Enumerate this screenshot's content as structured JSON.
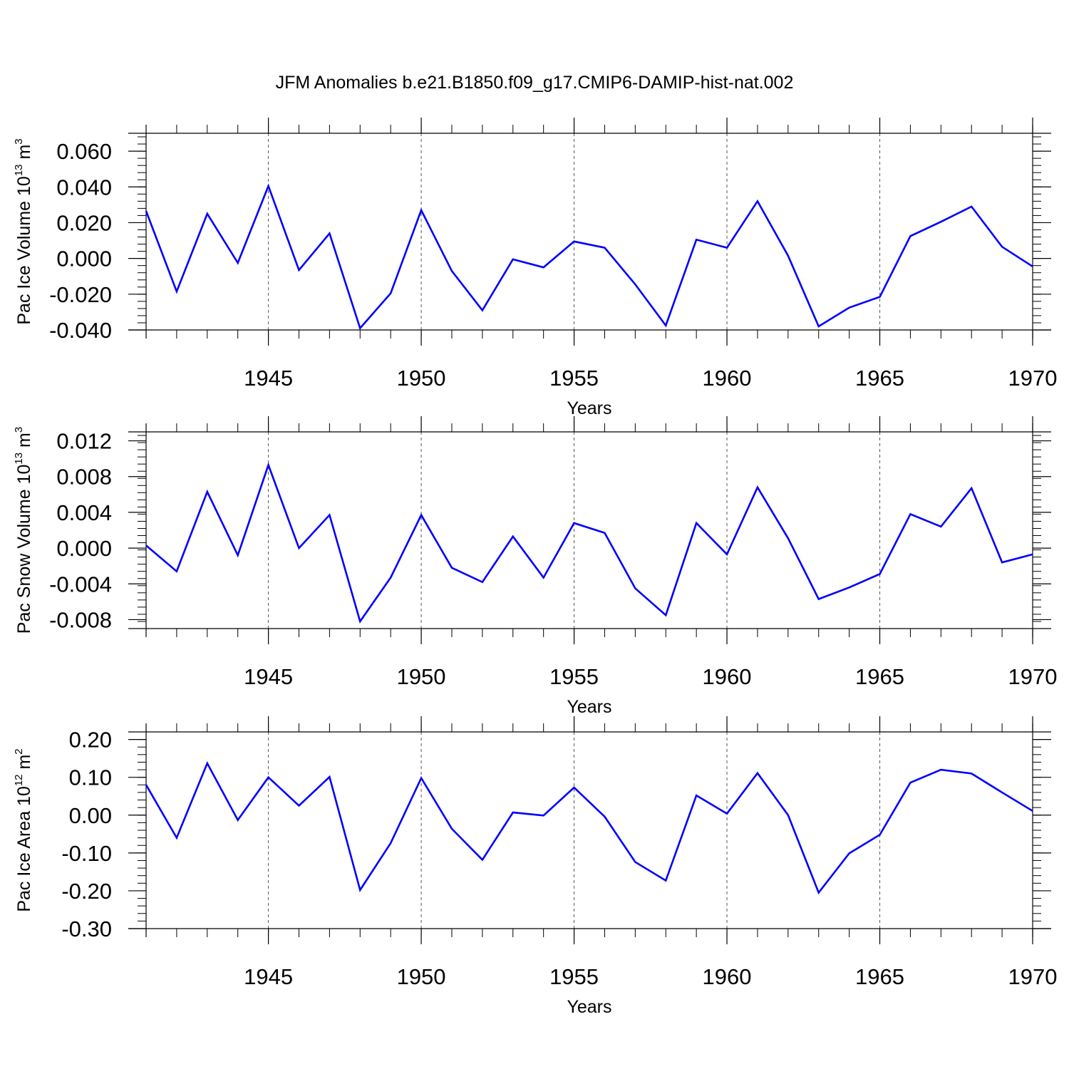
{
  "title": "JFM Anomalies b.e21.B1850.f09_g17.CMIP6-DAMIP-hist-nat.002",
  "line_color": "#0000ff",
  "chart_data": [
    {
      "type": "line",
      "ylabel_main": "Pac Ice Volume 10",
      "ylabel_sup": "13",
      "ylabel_unit": " m",
      "ylabel_unit_sup": "3",
      "xlabel": "Years",
      "xlim": [
        1941,
        1970
      ],
      "ylim": [
        -0.04,
        0.07
      ],
      "yticks": [
        -0.04,
        -0.02,
        0.0,
        0.02,
        0.04,
        0.06
      ],
      "ytick_labels": [
        "-0.040",
        "-0.020",
        "0.000",
        "0.020",
        "0.040",
        "0.060"
      ],
      "yminor": 0.004,
      "xticks": [
        1945,
        1950,
        1955,
        1960,
        1965,
        1970
      ],
      "xtick_labels": [
        "1945",
        "1950",
        "1955",
        "1960",
        "1965",
        "1970"
      ],
      "x": [
        1941,
        1942,
        1943,
        1944,
        1945,
        1946,
        1947,
        1948,
        1949,
        1950,
        1951,
        1952,
        1953,
        1954,
        1955,
        1956,
        1957,
        1958,
        1959,
        1960,
        1961,
        1962,
        1963,
        1964,
        1965,
        1966,
        1967,
        1968,
        1969,
        1970
      ],
      "series": [
        {
          "values": [
            0.0265,
            -0.0185,
            0.025,
            -0.0025,
            0.0405,
            -0.0065,
            0.014,
            -0.039,
            -0.0195,
            0.027,
            -0.007,
            -0.029,
            -0.0005,
            -0.005,
            0.0095,
            0.006,
            -0.0145,
            -0.0375,
            0.0105,
            0.006,
            0.032,
            0.0015,
            -0.038,
            -0.0275,
            -0.0215,
            0.0125,
            0.0205,
            0.029,
            0.0065,
            -0.0045
          ]
        }
      ]
    },
    {
      "type": "line",
      "ylabel_main": "Pac Snow Volume 10",
      "ylabel_sup": "13",
      "ylabel_unit": " m",
      "ylabel_unit_sup": "3",
      "xlabel": "Years",
      "xlim": [
        1941,
        1970
      ],
      "ylim": [
        -0.009,
        0.013
      ],
      "yticks": [
        -0.008,
        -0.004,
        0.0,
        0.004,
        0.008,
        0.012
      ],
      "ytick_labels": [
        "-0.008",
        "-0.004",
        "0.000",
        "0.004",
        "0.008",
        "0.012"
      ],
      "yminor": 0.0008,
      "xticks": [
        1945,
        1950,
        1955,
        1960,
        1965,
        1970
      ],
      "xtick_labels": [
        "1945",
        "1950",
        "1955",
        "1960",
        "1965",
        "1970"
      ],
      "x": [
        1941,
        1942,
        1943,
        1944,
        1945,
        1946,
        1947,
        1948,
        1949,
        1950,
        1951,
        1952,
        1953,
        1954,
        1955,
        1956,
        1957,
        1958,
        1959,
        1960,
        1961,
        1962,
        1963,
        1964,
        1965,
        1966,
        1967,
        1968,
        1969,
        1970
      ],
      "series": [
        {
          "values": [
            0.0003,
            -0.0026,
            0.0063,
            -0.0008,
            0.0093,
            0.0,
            0.0037,
            -0.0082,
            -0.0033,
            0.0037,
            -0.0022,
            -0.0038,
            0.0013,
            -0.0033,
            0.0028,
            0.0017,
            -0.0045,
            -0.0075,
            0.0028,
            -0.0007,
            0.0068,
            0.0011,
            -0.0057,
            -0.0044,
            -0.0029,
            0.0038,
            0.0024,
            0.0067,
            -0.0016,
            -0.0007
          ]
        }
      ]
    },
    {
      "type": "line",
      "ylabel_main": "Pac Ice Area 10",
      "ylabel_sup": "12",
      "ylabel_unit": " m",
      "ylabel_unit_sup": "2",
      "xlabel": "Years",
      "xlim": [
        1941,
        1970
      ],
      "ylim": [
        -0.3,
        0.22
      ],
      "yticks": [
        -0.3,
        -0.2,
        -0.1,
        0.0,
        0.1,
        0.2
      ],
      "ytick_labels": [
        "-0.30",
        "-0.20",
        "-0.10",
        "0.00",
        "0.10",
        "0.20"
      ],
      "yminor": 0.02,
      "xticks": [
        1945,
        1950,
        1955,
        1960,
        1965,
        1970
      ],
      "xtick_labels": [
        "1945",
        "1950",
        "1955",
        "1960",
        "1965",
        "1970"
      ],
      "x": [
        1941,
        1942,
        1943,
        1944,
        1945,
        1946,
        1947,
        1948,
        1949,
        1950,
        1951,
        1952,
        1953,
        1954,
        1955,
        1956,
        1957,
        1958,
        1959,
        1960,
        1961,
        1962,
        1963,
        1964,
        1965,
        1966,
        1967,
        1968,
        1969,
        1970
      ],
      "series": [
        {
          "values": [
            0.08,
            -0.06,
            0.137,
            -0.013,
            0.1,
            0.025,
            0.101,
            -0.198,
            -0.074,
            0.098,
            -0.036,
            -0.118,
            0.007,
            -0.001,
            0.073,
            -0.004,
            -0.124,
            -0.173,
            0.052,
            0.004,
            0.111,
            0.0,
            -0.205,
            -0.101,
            -0.052,
            0.086,
            0.12,
            0.11,
            0.06,
            0.011
          ]
        }
      ]
    }
  ]
}
